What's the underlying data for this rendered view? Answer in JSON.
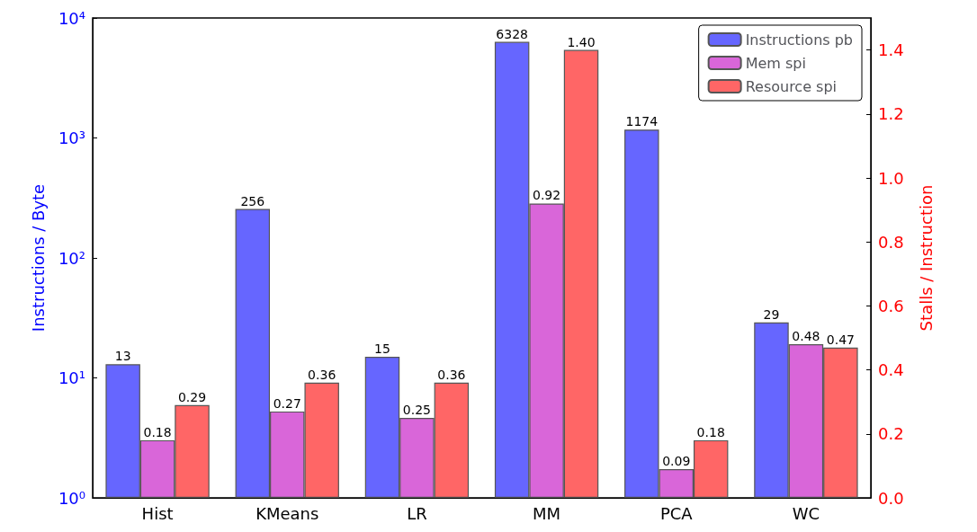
{
  "chart_data": {
    "type": "bar",
    "categories": [
      "Hist",
      "KMeans",
      "LR",
      "MM",
      "PCA",
      "WC"
    ],
    "ylabel": "Instructions / Byte",
    "y2label": "Stalls / Instruction",
    "log": "y",
    "ylim": [
      1,
      10000
    ],
    "yticks": [
      {
        "value": 1,
        "label": "10⁰"
      },
      {
        "value": 10,
        "label": "10¹"
      },
      {
        "value": 100,
        "label": "10²"
      },
      {
        "value": 1000,
        "label": "10³"
      },
      {
        "value": 10000,
        "label": "10⁴"
      }
    ],
    "y2lim": [
      0,
      1.5
    ],
    "y2ticks": [
      {
        "value": 0,
        "label": "0.0"
      },
      {
        "value": 0.2,
        "label": "0.2"
      },
      {
        "value": 0.4,
        "label": "0.4"
      },
      {
        "value": 0.6,
        "label": "0.6"
      },
      {
        "value": 0.8,
        "label": "0.8"
      },
      {
        "value": 1,
        "label": "1.0"
      },
      {
        "value": 1.2,
        "label": "1.2"
      },
      {
        "value": 1.4,
        "label": "1.4"
      }
    ],
    "grid": false,
    "legend": "top right",
    "series": [
      {
        "name": "Instructions pb",
        "color": "#6666ff",
        "values": [
          13,
          256,
          15,
          6328,
          1174,
          29
        ],
        "value_labels": [
          "13",
          "256",
          "15",
          "6328",
          "1174",
          "29"
        ]
      },
      {
        "name": "Mem spi",
        "color": "#d966d9",
        "axis": "y2",
        "values": [
          0.18,
          0.27,
          0.25,
          0.92,
          0.09,
          0.48
        ],
        "value_labels": [
          "0.18",
          "0.27",
          "0.25",
          "0.92",
          "0.09",
          "0.48"
        ]
      },
      {
        "name": "Resource spi",
        "color": "#ff6666",
        "axis": "y2",
        "values": [
          0.29,
          0.36,
          0.36,
          1.4,
          0.18,
          0.47
        ],
        "value_labels": [
          "0.29",
          "0.36",
          "0.36",
          "1.40",
          "0.18",
          "0.47"
        ]
      }
    ]
  }
}
